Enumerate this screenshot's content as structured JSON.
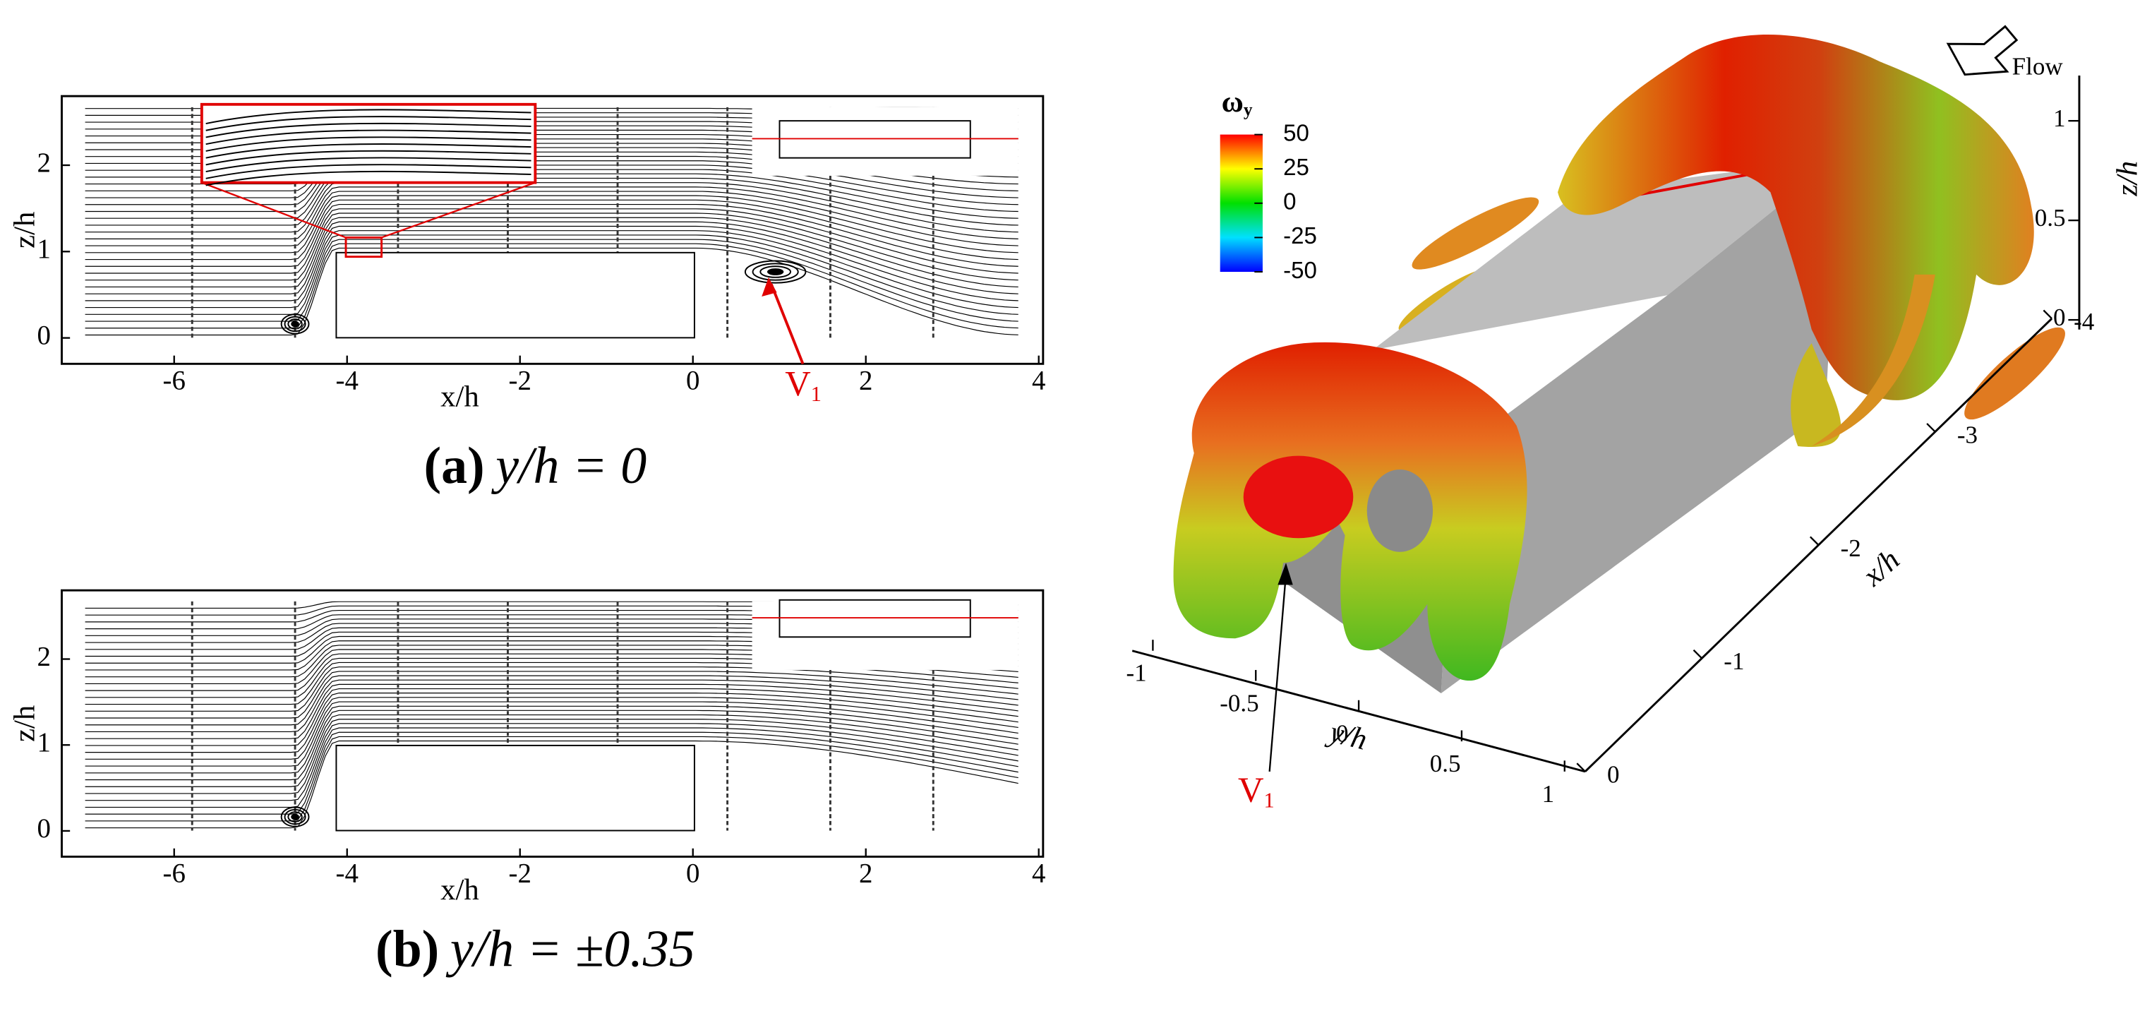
{
  "panels": [
    {
      "label": "(a)",
      "caption": "y/h = 0",
      "xlabel": "x/h",
      "ylabel": "z/h",
      "xlim": [
        -7.3,
        4.05
      ],
      "ylim": [
        -0.3,
        2.8
      ],
      "xticks": [
        -6,
        -4,
        -2,
        0,
        2,
        4
      ],
      "yticks": [
        0,
        1,
        2
      ],
      "annotation": {
        "text": "V",
        "sub": "1"
      }
    },
    {
      "label": "(b)",
      "caption": "y/h = ±0.35",
      "xlabel": "x/h",
      "ylabel": "z/h",
      "xlim": [
        -7.3,
        4.05
      ],
      "ylim": [
        -0.3,
        2.8
      ],
      "xticks": [
        -6,
        -4,
        -2,
        0,
        2,
        4
      ],
      "yticks": [
        0,
        1,
        2
      ]
    }
  ],
  "isosurface": {
    "colorbar": {
      "symbol": "ω",
      "sub": "y",
      "lim": [
        -50,
        50
      ],
      "ticks": [
        50,
        25,
        0,
        -25,
        -50
      ]
    },
    "flow_label": "Flow",
    "axes": {
      "x": {
        "label": "x/h",
        "ticks": [
          0,
          -1,
          -2,
          -3,
          -4
        ]
      },
      "y": {
        "label": "y/h",
        "ticks": [
          -1,
          -0.5,
          0,
          0.5,
          1
        ]
      },
      "z": {
        "label": "z/h",
        "ticks": [
          0,
          0.5,
          1
        ]
      }
    },
    "annotation": {
      "text": "V",
      "sub": "1"
    }
  }
}
